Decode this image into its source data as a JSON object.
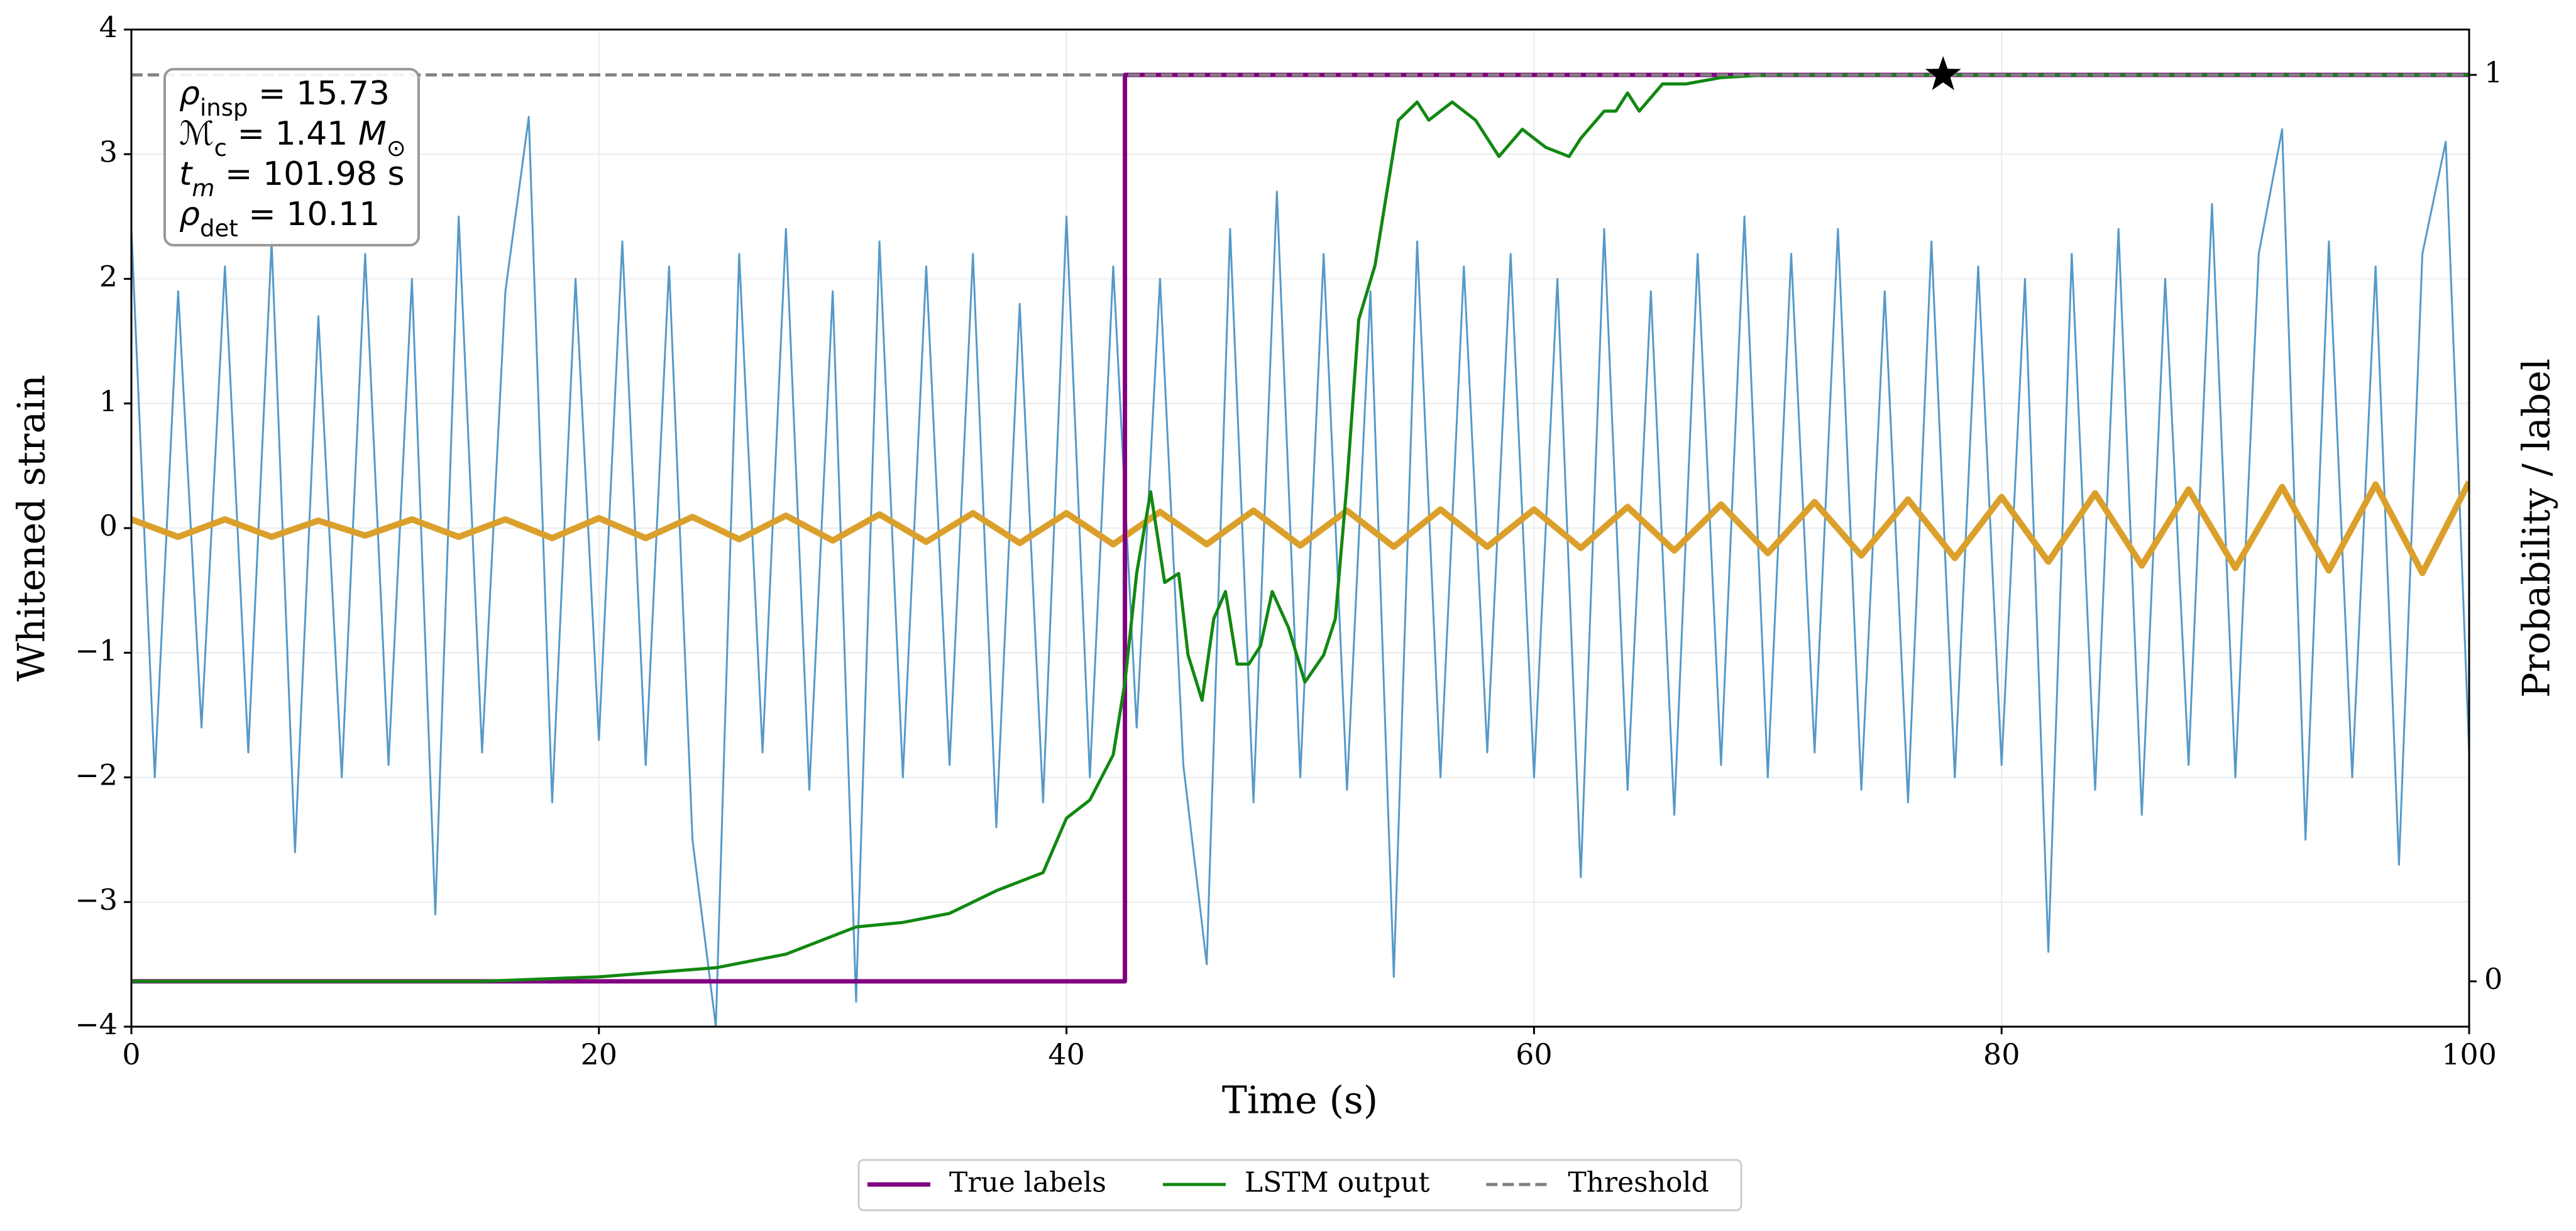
{
  "chart_data": {
    "type": "line",
    "xlabel": "Time (s)",
    "ylabel": "Whitened strain",
    "y2label": "Probability / label",
    "xlim": [
      0,
      100
    ],
    "xticks": [
      0,
      20,
      40,
      60,
      80,
      100
    ],
    "ylim": [
      -4,
      4
    ],
    "yticks": [
      {
        "value": -4,
        "label": "−4"
      },
      {
        "value": -3,
        "label": "−3"
      },
      {
        "value": -2,
        "label": "−2"
      },
      {
        "value": -1,
        "label": "−1"
      },
      0,
      1,
      2,
      3,
      4
    ],
    "y2lim": [
      -0.05,
      1.05
    ],
    "y2ticks": [
      0,
      1
    ],
    "grid": true,
    "legend": "lower center",
    "series": [
      {
        "color": "#5599c9",
        "width": 3,
        "x": [
          0,
          1,
          2,
          3,
          4,
          5,
          6,
          7,
          8,
          9,
          10,
          11,
          12,
          13,
          14,
          15,
          16,
          17,
          18,
          19,
          20,
          21,
          22,
          23,
          24,
          25,
          26,
          27,
          28,
          29,
          30,
          31,
          32,
          33,
          34,
          35,
          36,
          37,
          38,
          39,
          40,
          41,
          42,
          43,
          44,
          45,
          46,
          47,
          48,
          49,
          50,
          51,
          52,
          53,
          54,
          55,
          56,
          57,
          58,
          59,
          60,
          61,
          62,
          63,
          64,
          65,
          66,
          67,
          68,
          69,
          70,
          71,
          72,
          73,
          74,
          75,
          76,
          77,
          78,
          79,
          80,
          81,
          82,
          83,
          84,
          85,
          86,
          87,
          88,
          89,
          90,
          91,
          92,
          93,
          94,
          95,
          96,
          97,
          98,
          99,
          100
        ],
        "values": [
          2.4,
          -2.0,
          1.9,
          -1.6,
          2.1,
          -1.8,
          2.3,
          -2.6,
          1.7,
          -2.0,
          2.2,
          -1.9,
          2.0,
          -3.1,
          2.5,
          -1.8,
          1.9,
          3.3,
          -2.2,
          2.0,
          -1.7,
          2.3,
          -1.9,
          2.1,
          -2.5,
          -4.0,
          2.2,
          -1.8,
          2.4,
          -2.1,
          1.9,
          -3.8,
          2.3,
          -2.0,
          2.1,
          -1.9,
          2.2,
          -2.4,
          1.8,
          -2.2,
          2.5,
          -2.0,
          2.1,
          -1.6,
          2.0,
          -1.9,
          -3.5,
          2.4,
          -2.2,
          2.7,
          -2.0,
          2.2,
          -2.1,
          1.9,
          -3.6,
          2.3,
          -2.0,
          2.1,
          -1.8,
          2.2,
          -2.0,
          2.0,
          -2.8,
          2.4,
          -2.1,
          1.9,
          -2.3,
          2.2,
          -1.9,
          2.5,
          -2.0,
          2.2,
          -1.8,
          2.4,
          -2.1,
          1.9,
          -2.2,
          2.3,
          -2.0,
          2.1,
          -1.9,
          2.0,
          -3.4,
          2.2,
          -2.1,
          2.4,
          -2.3,
          2.0,
          -1.9,
          2.6,
          -2.0,
          2.2,
          3.2,
          -2.5,
          2.3,
          -2.0,
          2.1,
          -2.7,
          2.2,
          3.1,
          -1.8
        ]
      },
      {
        "color": "#dba02c",
        "width": 10,
        "x": [
          0,
          2,
          4,
          6,
          8,
          10,
          12,
          14,
          16,
          18,
          20,
          22,
          24,
          26,
          28,
          30,
          32,
          34,
          36,
          38,
          40,
          42,
          44,
          46,
          48,
          50,
          52,
          54,
          56,
          58,
          60,
          62,
          64,
          66,
          68,
          70,
          72,
          74,
          76,
          78,
          80,
          82,
          84,
          86,
          88,
          90,
          92,
          94,
          96,
          98,
          100
        ],
        "values": [
          0.07,
          -0.07,
          0.07,
          -0.07,
          0.06,
          -0.06,
          0.07,
          -0.07,
          0.07,
          -0.08,
          0.08,
          -0.08,
          0.09,
          -0.09,
          0.1,
          -0.1,
          0.11,
          -0.11,
          0.12,
          -0.12,
          0.12,
          -0.13,
          0.13,
          -0.13,
          0.14,
          -0.14,
          0.14,
          -0.15,
          0.15,
          -0.15,
          0.15,
          -0.16,
          0.17,
          -0.18,
          0.19,
          -0.2,
          0.21,
          -0.22,
          0.23,
          -0.24,
          0.25,
          -0.27,
          0.28,
          -0.3,
          0.31,
          -0.32,
          0.33,
          -0.34,
          0.35,
          -0.36,
          0.37
        ]
      },
      {
        "name": "True labels",
        "color": "#800080",
        "width": 7,
        "axis": "y2",
        "x": [
          0,
          42.5,
          42.5,
          100
        ],
        "values": [
          0,
          0,
          1,
          1
        ]
      },
      {
        "name": "LSTM output",
        "color": "#118811",
        "width": 5,
        "axis": "y2",
        "x": [
          0,
          15,
          20,
          25,
          28,
          30,
          31,
          33,
          35,
          37,
          38,
          39,
          40,
          41,
          42,
          42.5,
          43,
          43.6,
          44.2,
          44.8,
          45.2,
          45.8,
          46.3,
          46.8,
          47.3,
          47.8,
          48.3,
          48.8,
          49.5,
          50.2,
          51,
          51.5,
          52,
          52.5,
          53.2,
          54.2,
          55,
          55.5,
          56.5,
          57.5,
          58.5,
          59.5,
          60.5,
          61.5,
          62,
          63,
          63.5,
          64,
          64.5,
          65.5,
          66.5,
          68,
          70,
          100
        ],
        "values": [
          0,
          0,
          0.005,
          0.015,
          0.03,
          0.05,
          0.06,
          0.065,
          0.075,
          0.1,
          0.11,
          0.12,
          0.18,
          0.2,
          0.25,
          0.33,
          0.45,
          0.54,
          0.44,
          0.45,
          0.36,
          0.31,
          0.4,
          0.43,
          0.35,
          0.35,
          0.37,
          0.43,
          0.39,
          0.33,
          0.36,
          0.4,
          0.55,
          0.73,
          0.79,
          0.95,
          0.97,
          0.95,
          0.97,
          0.95,
          0.91,
          0.94,
          0.92,
          0.91,
          0.93,
          0.96,
          0.96,
          0.98,
          0.96,
          0.99,
          0.99,
          0.997,
          1,
          1
        ]
      },
      {
        "name": "Threshold",
        "color": "#808080",
        "width": 5,
        "dash": true,
        "axis": "y2",
        "x": [
          0,
          100
        ],
        "values": [
          1,
          1
        ]
      }
    ],
    "marker": {
      "x": 77.5,
      "value": 1,
      "symbol": "star",
      "color": "#000000",
      "axis": "y2"
    },
    "annotation": {
      "lines": [
        [
          {
            "text": "ρ",
            "italic": true
          },
          {
            "text": "insp",
            "sub": true
          },
          {
            "text": " = 15.73"
          }
        ],
        [
          {
            "text": "ℳ",
            "italic": true
          },
          {
            "text": "c",
            "sub": true
          },
          {
            "text": " = 1.41 "
          },
          {
            "text": "M",
            "italic": true
          },
          {
            "text": "⊙",
            "sub": true
          }
        ],
        [
          {
            "text": "t",
            "italic": true
          },
          {
            "text": "m",
            "sub": true,
            "italic": true
          },
          {
            "text": " = 101.98 s"
          }
        ],
        [
          {
            "text": "ρ",
            "italic": true
          },
          {
            "text": "det",
            "sub": true
          },
          {
            "text": " = 10.11"
          }
        ]
      ]
    }
  }
}
